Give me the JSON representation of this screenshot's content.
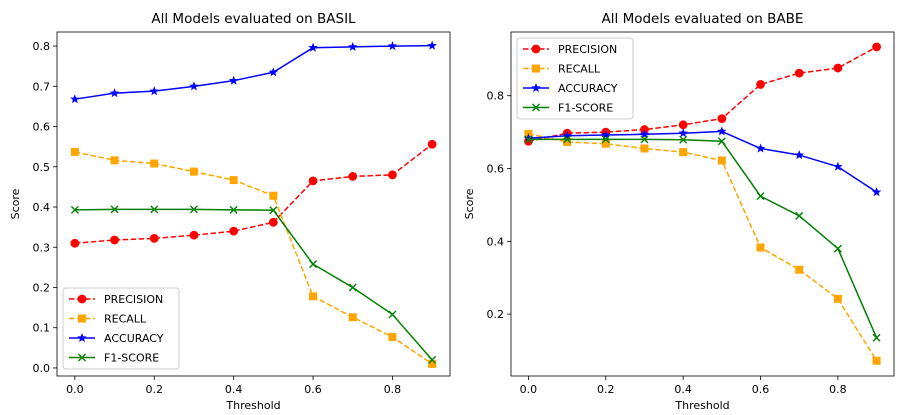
{
  "chart_data": [
    {
      "type": "line",
      "title": "All Models evaluated on BASIL",
      "xlabel": "Threshold",
      "ylabel": "Score",
      "x": [
        0.0,
        0.1,
        0.2,
        0.3,
        0.4,
        0.5,
        0.6,
        0.7,
        0.8,
        0.9
      ],
      "xlim": [
        -0.045,
        0.945
      ],
      "ylim": [
        -0.02,
        0.835
      ],
      "xticks": [
        0.0,
        0.2,
        0.4,
        0.6,
        0.8
      ],
      "xtick_labels": [
        "0.0",
        "0.2",
        "0.4",
        "0.6",
        "0.8"
      ],
      "yticks": [
        0.0,
        0.1,
        0.2,
        0.3,
        0.4,
        0.5,
        0.6,
        0.7,
        0.8
      ],
      "ytick_labels": [
        "0.0",
        "0.1",
        "0.2",
        "0.3",
        "0.4",
        "0.5",
        "0.6",
        "0.7",
        "0.8"
      ],
      "grid": false,
      "legend_position": "lower-left",
      "series": [
        {
          "name": "PRECISION",
          "color": "#ff0000",
          "marker": "circle",
          "dash": "dashed",
          "values": [
            0.31,
            0.318,
            0.322,
            0.33,
            0.34,
            0.362,
            0.465,
            0.476,
            0.48,
            0.556
          ]
        },
        {
          "name": "RECALL",
          "color": "#ffa500",
          "marker": "square",
          "dash": "dashed",
          "values": [
            0.537,
            0.516,
            0.508,
            0.488,
            0.467,
            0.428,
            0.178,
            0.126,
            0.077,
            0.01
          ]
        },
        {
          "name": "ACCURACY",
          "color": "#0000ff",
          "marker": "star",
          "dash": "solid",
          "values": [
            0.668,
            0.683,
            0.688,
            0.7,
            0.714,
            0.735,
            0.796,
            0.798,
            0.8,
            0.801
          ]
        },
        {
          "name": "F1-SCORE",
          "color": "#008000",
          "marker": "x",
          "dash": "solid",
          "values": [
            0.393,
            0.394,
            0.394,
            0.394,
            0.393,
            0.392,
            0.258,
            0.2,
            0.133,
            0.02
          ]
        }
      ]
    },
    {
      "type": "line",
      "title": "All Models evaluated on BABE",
      "xlabel": "Threshold",
      "ylabel": "Score",
      "x": [
        0.0,
        0.1,
        0.2,
        0.3,
        0.4,
        0.5,
        0.6,
        0.7,
        0.8,
        0.9
      ],
      "xlim": [
        -0.045,
        0.945
      ],
      "ylim": [
        0.03,
        0.975
      ],
      "xticks": [
        0.0,
        0.2,
        0.4,
        0.6,
        0.8
      ],
      "xtick_labels": [
        "0.0",
        "0.2",
        "0.4",
        "0.6",
        "0.8"
      ],
      "yticks": [
        0.2,
        0.4,
        0.6,
        0.8
      ],
      "ytick_labels": [
        "0.2",
        "0.4",
        "0.6",
        "0.8"
      ],
      "grid": false,
      "legend_position": "upper-left",
      "series": [
        {
          "name": "PRECISION",
          "color": "#ff0000",
          "marker": "circle",
          "dash": "dashed",
          "values": [
            0.675,
            0.697,
            0.7,
            0.707,
            0.72,
            0.737,
            0.831,
            0.862,
            0.876,
            0.934
          ]
        },
        {
          "name": "RECALL",
          "color": "#ffa500",
          "marker": "square",
          "dash": "dashed",
          "values": [
            0.695,
            0.673,
            0.668,
            0.655,
            0.645,
            0.622,
            0.383,
            0.322,
            0.242,
            0.072
          ]
        },
        {
          "name": "ACCURACY",
          "color": "#0000ff",
          "marker": "star",
          "dash": "solid",
          "values": [
            0.683,
            0.69,
            0.692,
            0.694,
            0.697,
            0.702,
            0.655,
            0.637,
            0.605,
            0.535
          ]
        },
        {
          "name": "F1-SCORE",
          "color": "#008000",
          "marker": "x",
          "dash": "solid",
          "values": [
            0.68,
            0.68,
            0.68,
            0.68,
            0.679,
            0.675,
            0.524,
            0.47,
            0.38,
            0.135
          ]
        }
      ]
    }
  ]
}
